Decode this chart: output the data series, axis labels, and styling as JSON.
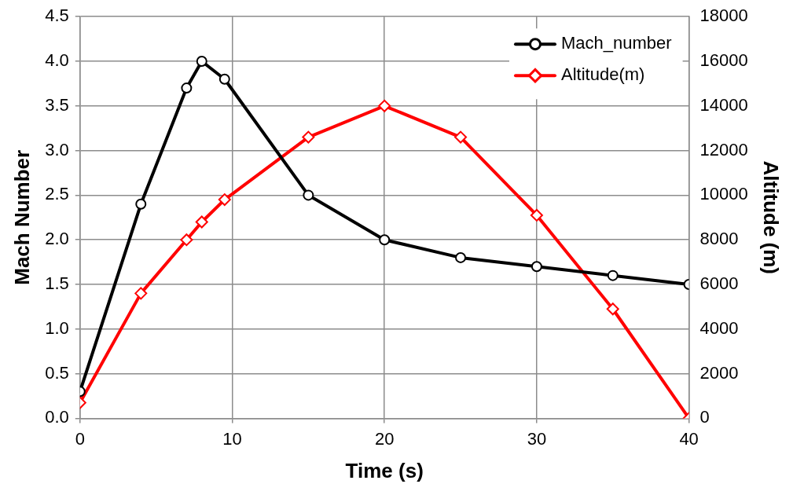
{
  "chart_data": {
    "type": "line",
    "xlabel": "Time (s)",
    "ylabel": "Mach Number",
    "y2label": "Altitude (m)",
    "xlim": [
      0,
      40
    ],
    "xticks": [
      0,
      10,
      20,
      30,
      40
    ],
    "ylim": [
      0,
      4.5
    ],
    "yticks": [
      {
        "value": 0,
        "label": "0.0"
      },
      {
        "value": 0.5,
        "label": "0.5"
      },
      {
        "value": 1,
        "label": "1.0"
      },
      {
        "value": 1.5,
        "label": "1.5"
      },
      {
        "value": 2,
        "label": "2.0"
      },
      {
        "value": 2.5,
        "label": "2.5"
      },
      {
        "value": 3,
        "label": "3.0"
      },
      {
        "value": 3.5,
        "label": "3.5"
      },
      {
        "value": 4,
        "label": "4.0"
      },
      {
        "value": 4.5,
        "label": "4.5"
      }
    ],
    "y2lim": [
      0,
      18000
    ],
    "y2ticks": [
      0,
      2000,
      4000,
      6000,
      8000,
      10000,
      12000,
      14000,
      16000,
      18000
    ],
    "grid": true,
    "legend": "top right",
    "line_style": "solid",
    "series": [
      {
        "name": "Mach_number",
        "color": "#000000",
        "marker": "circle",
        "x": [
          0,
          4,
          7,
          8,
          9.5,
          15,
          20,
          25,
          30,
          35,
          40
        ],
        "values": [
          0.3,
          2.4,
          3.7,
          4.0,
          3.8,
          2.5,
          2.0,
          1.8,
          1.7,
          1.6,
          1.5
        ]
      },
      {
        "name": "Altitude(m)",
        "color": "#ff0000",
        "marker": "diamond",
        "axis": "y2",
        "x": [
          0,
          4,
          7,
          8,
          9.5,
          15,
          20,
          25,
          30,
          35,
          40
        ],
        "values": [
          700,
          5600,
          8000,
          8800,
          9800,
          12600,
          14000,
          12600,
          9100,
          4900,
          0
        ]
      }
    ]
  }
}
